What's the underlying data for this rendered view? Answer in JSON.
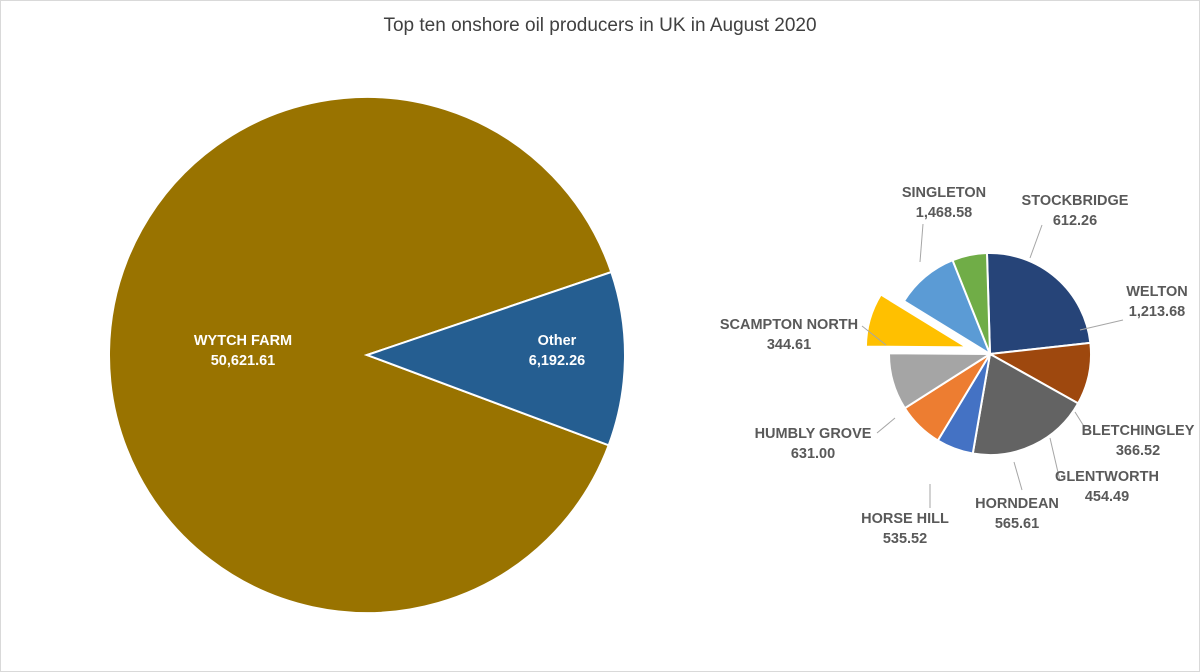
{
  "chart_data": [
    {
      "type": "pie",
      "title": "Top ten onshore oil producers in UK in August 2020",
      "slices": [
        {
          "label": "WYTCH FARM",
          "value": 50621.61,
          "value_text": "50,621.61",
          "color": "#997300"
        },
        {
          "label": "Other",
          "value": 6192.26,
          "value_text": "6,192.26",
          "color": "#255e91"
        }
      ]
    },
    {
      "type": "pie",
      "slices": [
        {
          "label": "SINGLETON",
          "value": 1468.58,
          "value_text": "1,468.58",
          "color": "#264478"
        },
        {
          "label": "STOCKBRIDGE",
          "value": 612.26,
          "value_text": "612.26",
          "color": "#9e480e"
        },
        {
          "label": "WELTON",
          "value": 1213.68,
          "value_text": "1,213.68",
          "color": "#636363"
        },
        {
          "label": "BLETCHINGLEY",
          "value": 366.52,
          "value_text": "366.52",
          "color": "#4472c4"
        },
        {
          "label": "GLENTWORTH",
          "value": 454.49,
          "value_text": "454.49",
          "color": "#ed7d31"
        },
        {
          "label": "HORNDEAN",
          "value": 565.61,
          "value_text": "565.61",
          "color": "#a5a5a5"
        },
        {
          "label": "HORSE HILL",
          "value": 535.52,
          "value_text": "535.52",
          "color": "#ffc000",
          "exploded": true
        },
        {
          "label": "HUMBLY GROVE",
          "value": 631.0,
          "value_text": "631.00",
          "color": "#5b9bd5"
        },
        {
          "label": "SCAMPTON NORTH",
          "value": 344.61,
          "value_text": "344.61",
          "color": "#70ad47"
        }
      ]
    }
  ]
}
